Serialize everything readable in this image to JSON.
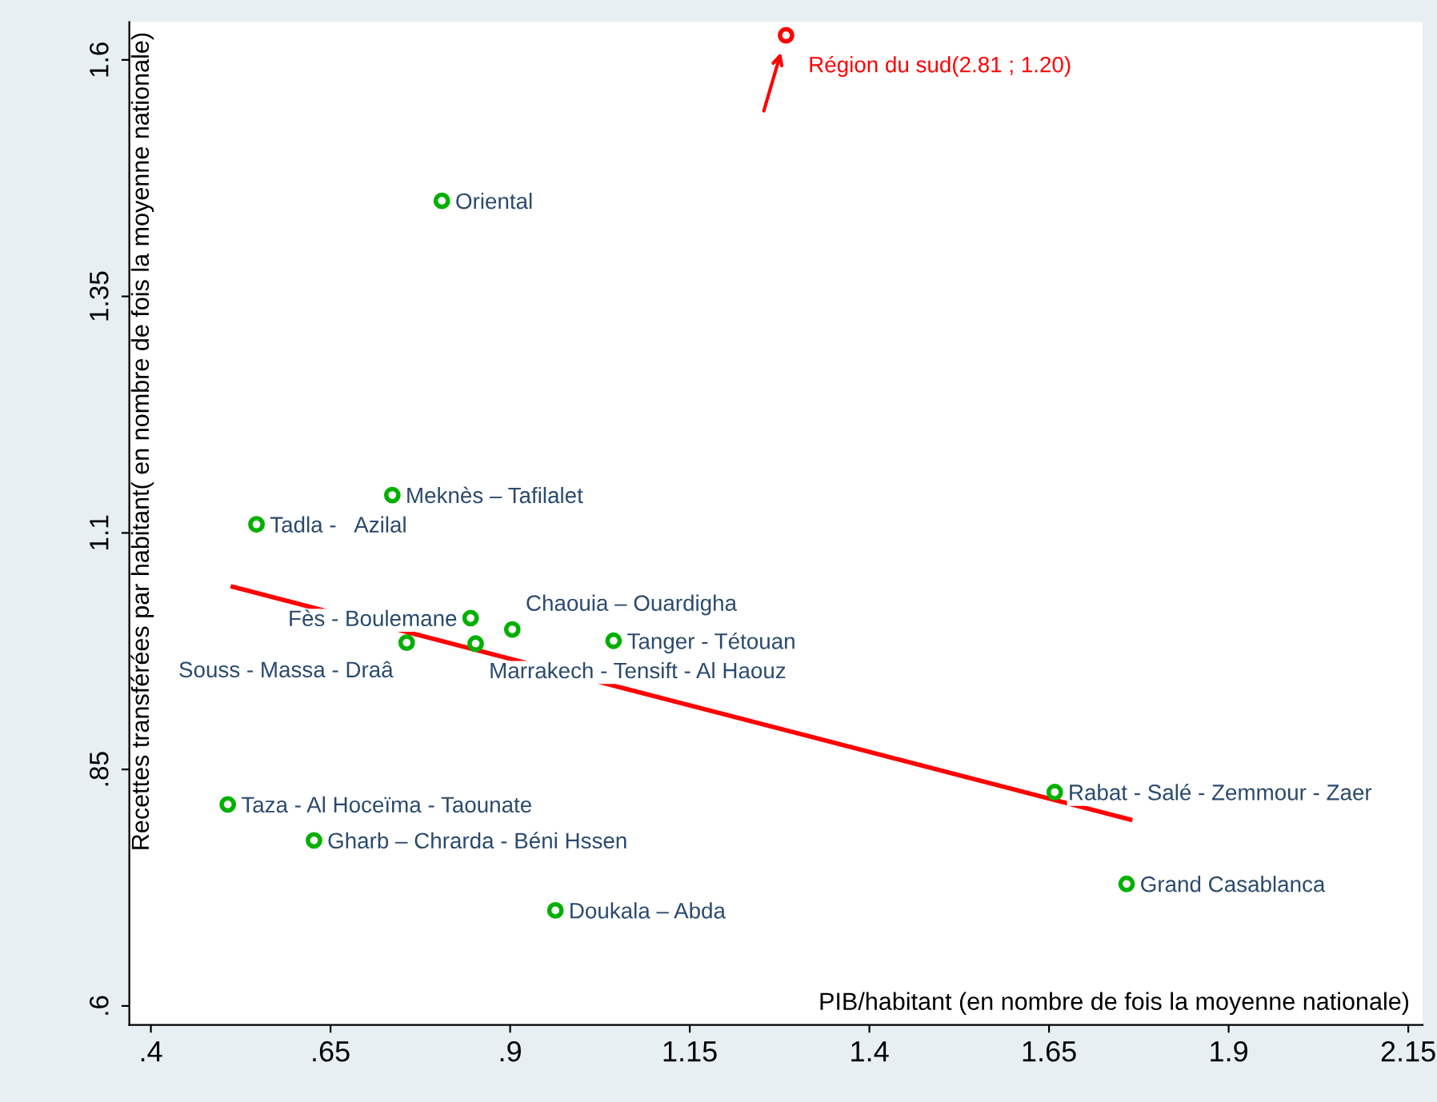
{
  "chart_data": {
    "type": "scatter",
    "ylabel": "Recettes transférées par habitant( en nombre de fois la moyenne nationale)",
    "xlabel": "PIB/habitant (en nombre de fois la moyenne nationale)",
    "xlim": [
      0.37,
      2.17
    ],
    "ylim": [
      0.58,
      1.64
    ],
    "xticks": [
      {
        "value": 0.4,
        "label": ".4"
      },
      {
        "value": 0.65,
        "label": ".65"
      },
      {
        "value": 0.9,
        "label": ".9"
      },
      1.15,
      1.4,
      1.65,
      1.9,
      2.15
    ],
    "yticks": [
      {
        "value": 0.6,
        "label": ".6"
      },
      {
        "value": 0.85,
        "label": ".85"
      },
      1.1,
      1.35,
      1.6
    ],
    "grid": false,
    "marker": "circle",
    "series": [
      {
        "color": "#00b000",
        "x": [
          0.805,
          0.736,
          0.547,
          0.845,
          0.903,
          1.044,
          0.852,
          0.756,
          0.507,
          0.627,
          0.963,
          1.658,
          1.758
        ],
        "values": [
          1.451,
          1.14,
          1.109,
          1.01,
          0.998,
          0.986,
          0.983,
          0.984,
          0.813,
          0.775,
          0.701,
          0.826,
          0.729
        ]
      },
      {
        "type": "scatter",
        "color": "#ff0000",
        "x": [
          1.284
        ],
        "values": [
          1.626
        ]
      },
      {
        "type": "line",
        "color": "#ff0000",
        "marker": "none",
        "x": [
          0.514,
          1.763
        ],
        "values": [
          1.043,
          0.797
        ]
      }
    ],
    "annotations": [
      {
        "text": "Oriental",
        "x": 0.805,
        "y": 1.451
      },
      {
        "text": "Meknès – Tafilalet",
        "x": 0.736,
        "y": 1.14
      },
      {
        "text": "Tadla -   Azilal",
        "x": 0.547,
        "y": 1.109
      },
      {
        "text": "Fès - Boulemane",
        "x": 0.845,
        "y": 1.01
      },
      {
        "text": "Chaouia – Ouardigha",
        "x": 0.903,
        "y": 0.998
      },
      {
        "text": "Tanger - Tétouan",
        "x": 1.044,
        "y": 0.986
      },
      {
        "text": "Marrakech - Tensift - Al Haouz",
        "x": 0.852,
        "y": 0.983
      },
      {
        "text": "Souss - Massa - Draâ",
        "x": 0.756,
        "y": 0.984
      },
      {
        "text": "Taza - Al Hoceïma - Taounate",
        "x": 0.507,
        "y": 0.813
      },
      {
        "text": "Gharb – Chrarda - Béni Hssen",
        "x": 0.627,
        "y": 0.775
      },
      {
        "text": "Doukala – Abda",
        "x": 0.963,
        "y": 0.701
      },
      {
        "text": "Rabat - Salé - Zemmour - Zaer",
        "x": 1.658,
        "y": 0.826
      },
      {
        "text": "Grand Casablanca",
        "x": 1.758,
        "y": 0.729
      },
      {
        "text": "Région du sud(2.81 ; 1.20)",
        "x": 1.284,
        "y": 1.626
      }
    ]
  }
}
